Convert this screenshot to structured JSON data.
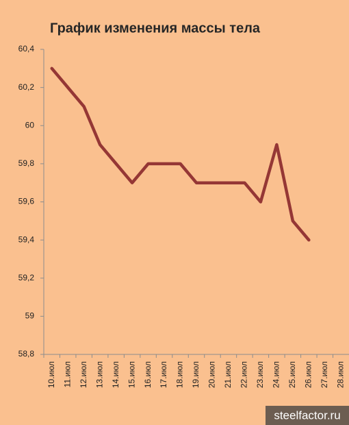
{
  "chart_data": {
    "type": "line",
    "title": "График изменения массы тела",
    "categories": [
      "10.июл",
      "11.июл",
      "12.июл",
      "13.июл",
      "14.июл",
      "15.июл",
      "16.июл",
      "17.июл",
      "18.июл",
      "19.июл",
      "20.июл",
      "21.июл",
      "22.июл",
      "23.июл",
      "24.июл",
      "25.июл",
      "26.июл",
      "27.июл",
      "28.июл"
    ],
    "values": [
      60.3,
      60.2,
      60.1,
      59.9,
      59.8,
      59.7,
      59.8,
      59.8,
      59.8,
      59.7,
      59.7,
      59.7,
      59.7,
      59.6,
      59.9,
      59.5,
      59.4,
      null,
      null
    ],
    "color": "#953735",
    "ylim": [
      58.8,
      60.4
    ],
    "yticks": [
      {
        "value": 58.8,
        "label": "58,8"
      },
      59,
      {
        "value": 59.2,
        "label": "59,2"
      },
      {
        "value": 59.4,
        "label": "59,4"
      },
      {
        "value": 59.6,
        "label": "59,6"
      },
      {
        "value": 59.8,
        "label": "59,8"
      },
      60,
      {
        "value": 60.2,
        "label": "60,2"
      },
      {
        "value": 60.4,
        "label": "60,4"
      }
    ],
    "grid": false
  },
  "watermark": "steelfactor.ru"
}
